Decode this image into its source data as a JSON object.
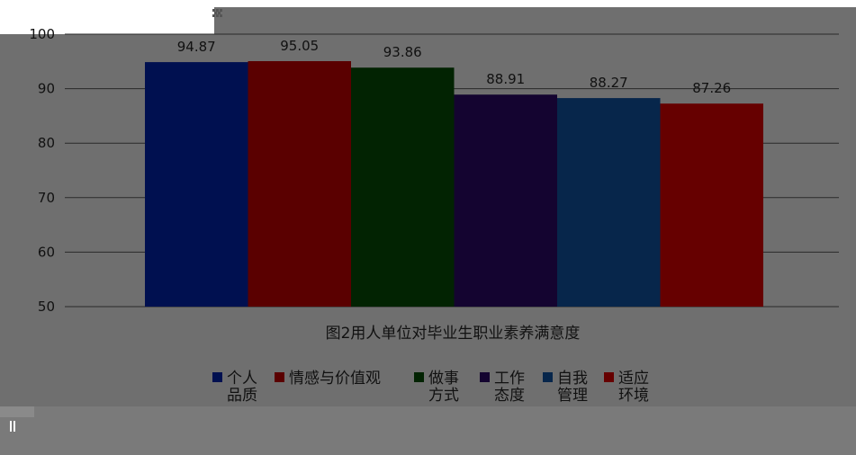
{
  "chart_data": {
    "type": "bar",
    "xlabel": "图2用人单位对毕业生职业素养满意度",
    "ylabel": "",
    "ylim": [
      50,
      100
    ],
    "yticks": [
      50,
      60,
      70,
      80,
      90,
      100
    ],
    "grid": true,
    "legend_position": "bottom",
    "series": [
      {
        "name": "个人品质",
        "legend_lines": [
          "个人",
          "品质"
        ],
        "value": 94.87,
        "color": "#001050"
      },
      {
        "name": "情感与价值观",
        "legend_lines": [
          "情感与价值观"
        ],
        "value": 95.05,
        "color": "#5a0000"
      },
      {
        "name": "做事方式",
        "legend_lines": [
          "做事",
          "方式"
        ],
        "value": 93.86,
        "color": "#022302"
      },
      {
        "name": "工作态度",
        "legend_lines": [
          "工作",
          "态度"
        ],
        "value": 88.91,
        "color": "#140430"
      },
      {
        "name": "自我管理",
        "legend_lines": [
          "自我",
          "管理"
        ],
        "value": 88.27,
        "color": "#07264b"
      },
      {
        "name": "适应环境",
        "legend_lines": [
          "适应",
          "环境"
        ],
        "value": 87.26,
        "color": "#660000"
      }
    ]
  },
  "colors": {
    "plot_background": "#6a6a6a",
    "page_background": "#6f6f6f",
    "gridline": "#2a2a2a",
    "text": "#111111"
  },
  "icons": [
    "resize-handle-icon",
    "scroll-grip-icon"
  ]
}
